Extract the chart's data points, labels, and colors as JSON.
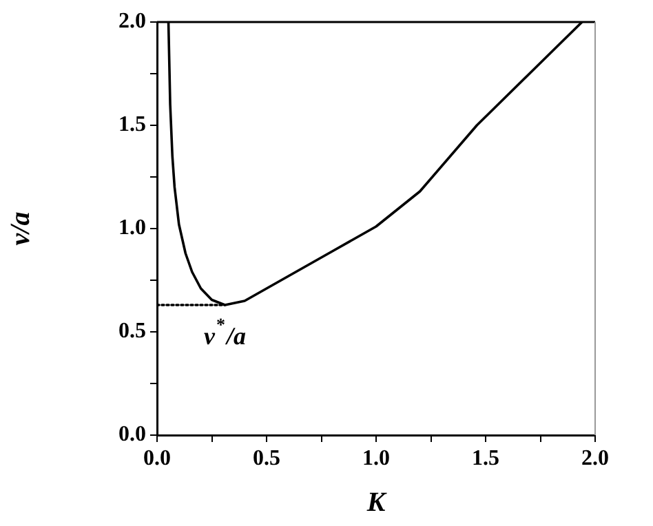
{
  "chart_data": {
    "type": "line",
    "xlabel": "K",
    "ylabel": "v/a",
    "xlim": [
      0,
      2
    ],
    "ylim": [
      0,
      2
    ],
    "xticks": [
      {
        "value": 0,
        "label": "0.0"
      },
      {
        "value": 0.25,
        "label": null
      },
      {
        "value": 0.5,
        "label": "0.5"
      },
      {
        "value": 0.75,
        "label": null
      },
      {
        "value": 1,
        "label": "1.0"
      },
      {
        "value": 1.25,
        "label": null
      },
      {
        "value": 1.5,
        "label": "1.5"
      },
      {
        "value": 1.75,
        "label": null
      },
      {
        "value": 2,
        "label": "2.0"
      }
    ],
    "yticks": [
      {
        "value": 0,
        "label": "0.0"
      },
      {
        "value": 0.25,
        "label": null
      },
      {
        "value": 0.5,
        "label": "0.5"
      },
      {
        "value": 0.75,
        "label": null
      },
      {
        "value": 1,
        "label": "1.0"
      },
      {
        "value": 1.25,
        "label": null
      },
      {
        "value": 1.5,
        "label": "1.5"
      },
      {
        "value": 1.75,
        "label": null
      },
      {
        "value": 2,
        "label": "2.0"
      }
    ],
    "grid": false,
    "legend": false,
    "marker": "none",
    "series": [
      {
        "color": "#000000",
        "line_style": "solid",
        "x": [
          0.052,
          0.06,
          0.07,
          0.08,
          0.1,
          0.13,
          0.16,
          0.2,
          0.25,
          0.31,
          0.4,
          0.5,
          0.6,
          0.8,
          1.0,
          1.2,
          1.46,
          1.7,
          1.94
        ],
        "values": [
          2.0,
          1.6,
          1.35,
          1.2,
          1.02,
          0.88,
          0.79,
          0.71,
          0.655,
          0.63,
          0.65,
          0.71,
          0.77,
          0.89,
          1.01,
          1.18,
          1.5,
          1.75,
          2.0
        ]
      },
      {
        "color": "#000000",
        "line_style": "dotted",
        "x": [
          0,
          0.31
        ],
        "values": [
          0.63,
          0.63
        ]
      }
    ],
    "annotations": [
      {
        "text": "v$^{*}$/a",
        "x": 0.31,
        "y": 0.63
      }
    ]
  }
}
